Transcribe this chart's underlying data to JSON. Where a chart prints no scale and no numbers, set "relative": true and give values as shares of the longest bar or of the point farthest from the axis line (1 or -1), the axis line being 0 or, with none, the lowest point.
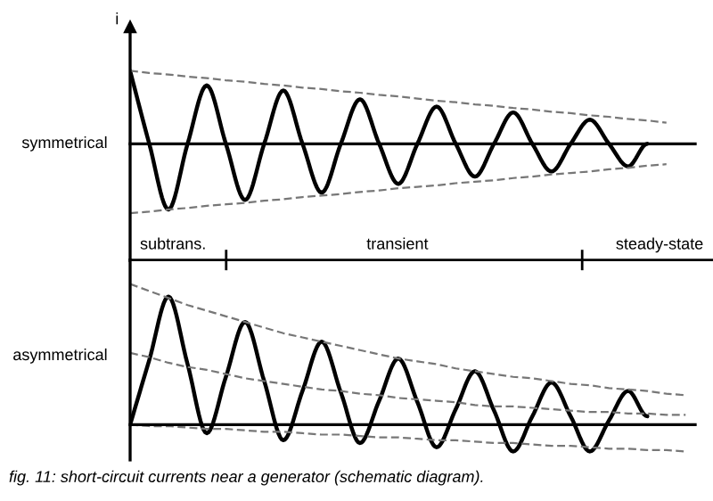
{
  "chart_data": [
    {
      "type": "line",
      "relative": true,
      "ylabel": "i",
      "annotations": [
        "symmetrical"
      ],
      "categories": [
        null,
        null,
        null,
        null,
        null,
        null,
        null,
        null,
        null,
        null,
        null,
        null,
        null,
        null,
        null,
        null,
        null,
        null,
        null,
        null,
        null,
        null,
        null,
        null,
        null,
        null,
        null,
        null,
        null,
        null
      ],
      "series": [
        {
          "color": "#000000",
          "line_style": "solid",
          "values": [
            1,
            0,
            -0.9,
            0,
            0.8,
            0,
            -0.77,
            0,
            0.73,
            0,
            -0.67,
            0,
            0.61,
            0,
            -0.55,
            0,
            0.51,
            0,
            -0.45,
            0,
            0.43,
            0,
            -0.38,
            0,
            0.33,
            0,
            -0.31,
            0,
            null,
            null
          ]
        },
        {
          "color": "#777777",
          "line_style": "dashed",
          "values": [
            1,
            0.97,
            0.95,
            0.92,
            0.9,
            0.87,
            0.85,
            0.82,
            0.8,
            0.77,
            0.75,
            0.72,
            0.7,
            0.67,
            0.65,
            0.62,
            0.59,
            0.57,
            0.54,
            0.52,
            0.49,
            0.47,
            0.44,
            0.42,
            0.39,
            0.37,
            0.34,
            0.32,
            0.29,
            null
          ]
        },
        {
          "color": "#777777",
          "line_style": "dashed",
          "values": [
            -0.95,
            -0.93,
            -0.9,
            -0.88,
            -0.85,
            -0.83,
            -0.81,
            -0.78,
            -0.76,
            -0.73,
            -0.71,
            -0.69,
            -0.66,
            -0.64,
            -0.61,
            -0.59,
            -0.57,
            -0.54,
            -0.52,
            -0.5,
            -0.47,
            -0.45,
            -0.42,
            -0.4,
            -0.38,
            -0.35,
            -0.33,
            -0.3,
            -0.28,
            null
          ]
        }
      ]
    },
    {
      "type": "line",
      "relative": true,
      "annotations": [
        "asymmetrical",
        "subtrans.",
        "transient",
        "steady-state",
        "fig. 11: short-circuit currents near a generator (schematic diagram)."
      ],
      "categories": [
        null,
        null,
        null,
        null,
        null,
        null,
        null,
        null,
        null,
        null,
        null,
        null,
        null,
        null,
        null,
        null,
        null,
        null,
        null,
        null,
        null,
        null,
        null,
        null,
        null,
        null,
        null,
        null,
        null,
        null
      ],
      "series": [
        {
          "color": "#000000",
          "line_style": "solid",
          "values": [
            0,
            0.46,
            0.91,
            0.43,
            -0.06,
            0.34,
            0.73,
            0.31,
            -0.11,
            0.24,
            0.59,
            0.23,
            -0.13,
            0.17,
            0.47,
            0.16,
            -0.16,
            0.11,
            0.38,
            0.1,
            -0.19,
            0.06,
            0.3,
            0.06,
            -0.19,
            0.03,
            0.24,
            0.06,
            null,
            null
          ]
        },
        {
          "color": "#777777",
          "line_style": "dashed",
          "values": [
            1,
            0.95,
            0.9,
            0.85,
            0.81,
            0.77,
            0.73,
            0.69,
            0.65,
            0.62,
            0.59,
            0.56,
            0.53,
            0.5,
            0.47,
            0.45,
            0.43,
            0.4,
            0.38,
            0.36,
            0.34,
            0.33,
            0.31,
            0.29,
            0.28,
            0.26,
            0.25,
            0.24,
            0.22,
            0.21
          ]
        },
        {
          "color": "#777777",
          "line_style": "dashed",
          "values": [
            0.51,
            0.48,
            0.44,
            0.41,
            0.39,
            0.36,
            0.33,
            0.31,
            0.29,
            0.27,
            0.25,
            0.24,
            0.22,
            0.21,
            0.19,
            0.18,
            0.17,
            0.16,
            0.14,
            0.13,
            0.13,
            0.12,
            0.11,
            0.1,
            0.09,
            0.09,
            0.08,
            0.08,
            0.07,
            0.07
          ]
        },
        {
          "color": "#777777",
          "line_style": "dashed",
          "values": [
            0,
            -0.01,
            -0.01,
            -0.02,
            -0.03,
            -0.03,
            -0.04,
            -0.05,
            -0.05,
            -0.06,
            -0.07,
            -0.07,
            -0.08,
            -0.09,
            -0.09,
            -0.1,
            -0.11,
            -0.11,
            -0.12,
            -0.13,
            -0.13,
            -0.14,
            -0.15,
            -0.15,
            -0.16,
            -0.17,
            -0.17,
            -0.18,
            -0.18,
            -0.19
          ]
        }
      ]
    }
  ]
}
